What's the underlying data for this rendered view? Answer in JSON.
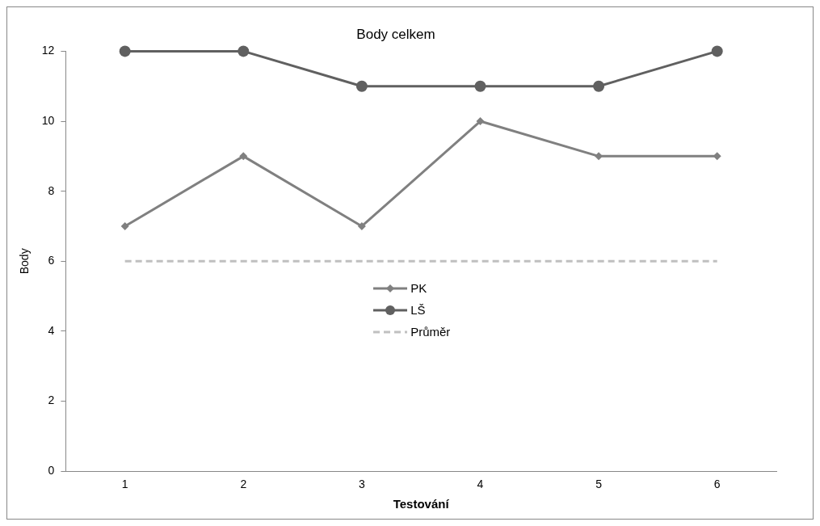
{
  "chart_data": {
    "type": "line",
    "title": "Body celkem",
    "xlabel": "Testování",
    "ylabel": "Body",
    "categories": [
      "1",
      "2",
      "3",
      "4",
      "5",
      "6"
    ],
    "series": [
      {
        "name": "PK",
        "color": "#808080",
        "values": [
          7,
          9,
          7,
          10,
          9,
          9
        ],
        "marker": "diamond"
      },
      {
        "name": "LŠ",
        "color": "#606060",
        "values": [
          12,
          12,
          11,
          11,
          11,
          12
        ],
        "marker": "circle"
      },
      {
        "name": "Průměr",
        "color": "#c0c0c0",
        "values": [
          6,
          6,
          6,
          6,
          6,
          6
        ],
        "marker": "none",
        "line_style": "dashed"
      }
    ],
    "ylim": [
      0,
      12
    ],
    "yticks": [
      0,
      2,
      4,
      6,
      8,
      10,
      12
    ],
    "grid": false,
    "legend": "center"
  }
}
